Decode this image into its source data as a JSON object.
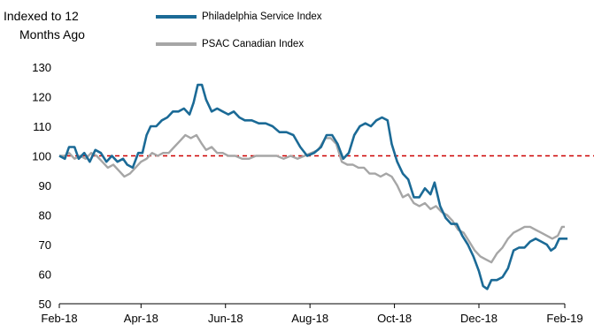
{
  "chart_data": {
    "type": "line",
    "ylabel_lines": [
      "Indexed to 12",
      "Months Ago"
    ],
    "ylim": [
      50,
      130
    ],
    "yticks": [
      50,
      60,
      70,
      80,
      90,
      100,
      110,
      120,
      130
    ],
    "xlim": [
      "2018-02-01",
      "2019-02-01"
    ],
    "xticks": [
      {
        "date": "2018-02-01",
        "label": "Feb-18"
      },
      {
        "date": "2018-04-01",
        "label": "Apr-18"
      },
      {
        "date": "2018-06-01",
        "label": "Jun-18"
      },
      {
        "date": "2018-08-01",
        "label": "Aug-18"
      },
      {
        "date": "2018-10-01",
        "label": "Oct-18"
      },
      {
        "date": "2018-12-01",
        "label": "Dec-18"
      },
      {
        "date": "2019-02-01",
        "label": "Feb-19"
      }
    ],
    "reference_line": {
      "y": 100,
      "color": "#cc0000",
      "style": "dashed"
    },
    "legend_placement": "top",
    "series": [
      {
        "name": "Philadelphia Service Index",
        "color": "#1b6a96",
        "points": [
          [
            "2018-02-01",
            100
          ],
          [
            "2018-02-05",
            99
          ],
          [
            "2018-02-08",
            103
          ],
          [
            "2018-02-12",
            103
          ],
          [
            "2018-02-15",
            99
          ],
          [
            "2018-02-19",
            101
          ],
          [
            "2018-02-23",
            98
          ],
          [
            "2018-02-27",
            102
          ],
          [
            "2018-03-03",
            101
          ],
          [
            "2018-03-07",
            98
          ],
          [
            "2018-03-11",
            100
          ],
          [
            "2018-03-15",
            98
          ],
          [
            "2018-03-19",
            99
          ],
          [
            "2018-03-22",
            97
          ],
          [
            "2018-03-26",
            96
          ],
          [
            "2018-03-30",
            101
          ],
          [
            "2018-04-02",
            101
          ],
          [
            "2018-04-05",
            107
          ],
          [
            "2018-04-08",
            110
          ],
          [
            "2018-04-12",
            110
          ],
          [
            "2018-04-16",
            112
          ],
          [
            "2018-04-20",
            113
          ],
          [
            "2018-04-24",
            115
          ],
          [
            "2018-04-28",
            115
          ],
          [
            "2018-05-02",
            116
          ],
          [
            "2018-05-06",
            114
          ],
          [
            "2018-05-09",
            118
          ],
          [
            "2018-05-12",
            124
          ],
          [
            "2018-05-15",
            124
          ],
          [
            "2018-05-18",
            119
          ],
          [
            "2018-05-22",
            115
          ],
          [
            "2018-05-26",
            116
          ],
          [
            "2018-05-30",
            115
          ],
          [
            "2018-06-03",
            114
          ],
          [
            "2018-06-07",
            115
          ],
          [
            "2018-06-11",
            113
          ],
          [
            "2018-06-15",
            112
          ],
          [
            "2018-06-20",
            112
          ],
          [
            "2018-06-25",
            111
          ],
          [
            "2018-06-30",
            111
          ],
          [
            "2018-07-05",
            110
          ],
          [
            "2018-07-10",
            108
          ],
          [
            "2018-07-15",
            108
          ],
          [
            "2018-07-20",
            107
          ],
          [
            "2018-07-25",
            103
          ],
          [
            "2018-07-30",
            100
          ],
          [
            "2018-08-04",
            101
          ],
          [
            "2018-08-09",
            103
          ],
          [
            "2018-08-13",
            107
          ],
          [
            "2018-08-17",
            107
          ],
          [
            "2018-08-21",
            104
          ],
          [
            "2018-08-25",
            99
          ],
          [
            "2018-08-29",
            101
          ],
          [
            "2018-09-02",
            107
          ],
          [
            "2018-09-06",
            110
          ],
          [
            "2018-09-10",
            111
          ],
          [
            "2018-09-14",
            110
          ],
          [
            "2018-09-18",
            112
          ],
          [
            "2018-09-22",
            113
          ],
          [
            "2018-09-26",
            112
          ],
          [
            "2018-09-29",
            104
          ],
          [
            "2018-10-03",
            98
          ],
          [
            "2018-10-07",
            94
          ],
          [
            "2018-10-11",
            92
          ],
          [
            "2018-10-15",
            86
          ],
          [
            "2018-10-19",
            86
          ],
          [
            "2018-10-23",
            89
          ],
          [
            "2018-10-27",
            87
          ],
          [
            "2018-10-30",
            91
          ],
          [
            "2018-11-03",
            83
          ],
          [
            "2018-11-07",
            79
          ],
          [
            "2018-11-11",
            77
          ],
          [
            "2018-11-15",
            77
          ],
          [
            "2018-11-19",
            73
          ],
          [
            "2018-11-23",
            70
          ],
          [
            "2018-11-27",
            66
          ],
          [
            "2018-12-01",
            61
          ],
          [
            "2018-12-04",
            56
          ],
          [
            "2018-12-07",
            55
          ],
          [
            "2018-12-10",
            58
          ],
          [
            "2018-12-14",
            58
          ],
          [
            "2018-12-18",
            59
          ],
          [
            "2018-12-22",
            62
          ],
          [
            "2018-12-26",
            68
          ],
          [
            "2018-12-30",
            69
          ],
          [
            "2019-01-03",
            69
          ],
          [
            "2019-01-07",
            71
          ],
          [
            "2019-01-11",
            72
          ],
          [
            "2019-01-15",
            71
          ],
          [
            "2019-01-19",
            70
          ],
          [
            "2019-01-22",
            68
          ],
          [
            "2019-01-25",
            69
          ],
          [
            "2019-01-28",
            72
          ],
          [
            "2019-01-31",
            72
          ],
          [
            "2019-02-03",
            72
          ]
        ]
      },
      {
        "name": "PSAC Canadian Index",
        "color": "#a6a6a6",
        "points": [
          [
            "2018-02-01",
            100
          ],
          [
            "2018-02-05",
            100
          ],
          [
            "2018-02-08",
            101
          ],
          [
            "2018-02-12",
            99
          ],
          [
            "2018-02-16",
            100
          ],
          [
            "2018-02-20",
            99
          ],
          [
            "2018-02-24",
            101
          ],
          [
            "2018-02-28",
            100
          ],
          [
            "2018-03-04",
            98
          ],
          [
            "2018-03-08",
            96
          ],
          [
            "2018-03-12",
            97
          ],
          [
            "2018-03-16",
            95
          ],
          [
            "2018-03-20",
            93
          ],
          [
            "2018-03-24",
            94
          ],
          [
            "2018-03-28",
            96
          ],
          [
            "2018-04-01",
            98
          ],
          [
            "2018-04-05",
            99
          ],
          [
            "2018-04-09",
            101
          ],
          [
            "2018-04-13",
            100
          ],
          [
            "2018-04-17",
            101
          ],
          [
            "2018-04-21",
            101
          ],
          [
            "2018-04-25",
            103
          ],
          [
            "2018-04-29",
            105
          ],
          [
            "2018-05-03",
            107
          ],
          [
            "2018-05-07",
            106
          ],
          [
            "2018-05-11",
            107
          ],
          [
            "2018-05-15",
            104
          ],
          [
            "2018-05-18",
            102
          ],
          [
            "2018-05-22",
            103
          ],
          [
            "2018-05-26",
            101
          ],
          [
            "2018-05-30",
            101
          ],
          [
            "2018-06-03",
            100
          ],
          [
            "2018-06-08",
            100
          ],
          [
            "2018-06-13",
            99
          ],
          [
            "2018-06-18",
            99
          ],
          [
            "2018-06-23",
            100
          ],
          [
            "2018-06-28",
            100
          ],
          [
            "2018-07-03",
            100
          ],
          [
            "2018-07-08",
            100
          ],
          [
            "2018-07-13",
            99
          ],
          [
            "2018-07-18",
            100
          ],
          [
            "2018-07-23",
            99
          ],
          [
            "2018-07-28",
            100
          ],
          [
            "2018-08-02",
            101
          ],
          [
            "2018-08-07",
            102
          ],
          [
            "2018-08-12",
            106
          ],
          [
            "2018-08-16",
            106
          ],
          [
            "2018-08-20",
            104
          ],
          [
            "2018-08-24",
            98
          ],
          [
            "2018-08-28",
            97
          ],
          [
            "2018-09-01",
            97
          ],
          [
            "2018-09-05",
            96
          ],
          [
            "2018-09-09",
            96
          ],
          [
            "2018-09-13",
            94
          ],
          [
            "2018-09-17",
            94
          ],
          [
            "2018-09-21",
            93
          ],
          [
            "2018-09-25",
            94
          ],
          [
            "2018-09-29",
            93
          ],
          [
            "2018-10-03",
            90
          ],
          [
            "2018-10-07",
            86
          ],
          [
            "2018-10-11",
            87
          ],
          [
            "2018-10-15",
            84
          ],
          [
            "2018-10-19",
            83
          ],
          [
            "2018-10-23",
            84
          ],
          [
            "2018-10-27",
            82
          ],
          [
            "2018-10-31",
            83
          ],
          [
            "2018-11-04",
            81
          ],
          [
            "2018-11-08",
            80
          ],
          [
            "2018-11-12",
            78
          ],
          [
            "2018-11-16",
            75
          ],
          [
            "2018-11-20",
            74
          ],
          [
            "2018-11-24",
            71
          ],
          [
            "2018-11-28",
            68
          ],
          [
            "2018-12-02",
            66
          ],
          [
            "2018-12-06",
            65
          ],
          [
            "2018-12-10",
            64
          ],
          [
            "2018-12-14",
            67
          ],
          [
            "2018-12-18",
            69
          ],
          [
            "2018-12-22",
            72
          ],
          [
            "2018-12-26",
            74
          ],
          [
            "2018-12-30",
            75
          ],
          [
            "2019-01-03",
            76
          ],
          [
            "2019-01-07",
            76
          ],
          [
            "2019-01-11",
            75
          ],
          [
            "2019-01-15",
            74
          ],
          [
            "2019-01-19",
            73
          ],
          [
            "2019-01-23",
            72
          ],
          [
            "2019-01-27",
            73
          ],
          [
            "2019-01-30",
            76
          ],
          [
            "2019-02-01",
            76
          ]
        ]
      }
    ]
  }
}
